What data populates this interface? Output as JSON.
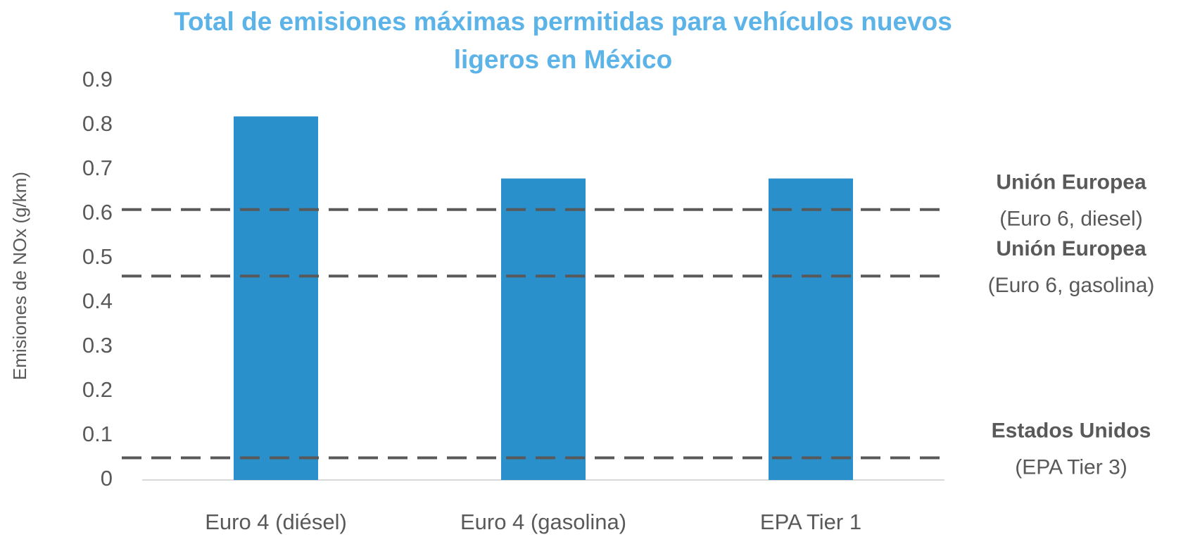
{
  "chart_data": {
    "type": "bar",
    "title": "Total de emisiones máximas permitidas para vehículos nuevos ligeros en México",
    "y_label": "Emisiones de NOx (g/km)",
    "categories": [
      "Euro 4 (diésel)",
      "Euro 4 (gasolina)",
      "EPA Tier 1"
    ],
    "values": [
      0.82,
      0.68,
      0.68
    ],
    "color": "#2a90cc",
    "ylim": [
      0,
      0.9
    ],
    "yticks": [
      0,
      0.1,
      0.2,
      0.3,
      0.4,
      0.5,
      0.6,
      0.7,
      0.8,
      0.9
    ],
    "grid": false,
    "reference_lines": [
      {
        "value": 0.61,
        "label": "Unión Europea",
        "sublabel": "(Euro 6, diesel)"
      },
      {
        "value": 0.46,
        "label": "Unión Europea",
        "sublabel": "(Euro 6, gasolina)"
      },
      {
        "value": 0.05,
        "label": "Estados Unidos",
        "sublabel": "(EPA Tier 3)"
      }
    ],
    "reference_color": "#595959"
  }
}
